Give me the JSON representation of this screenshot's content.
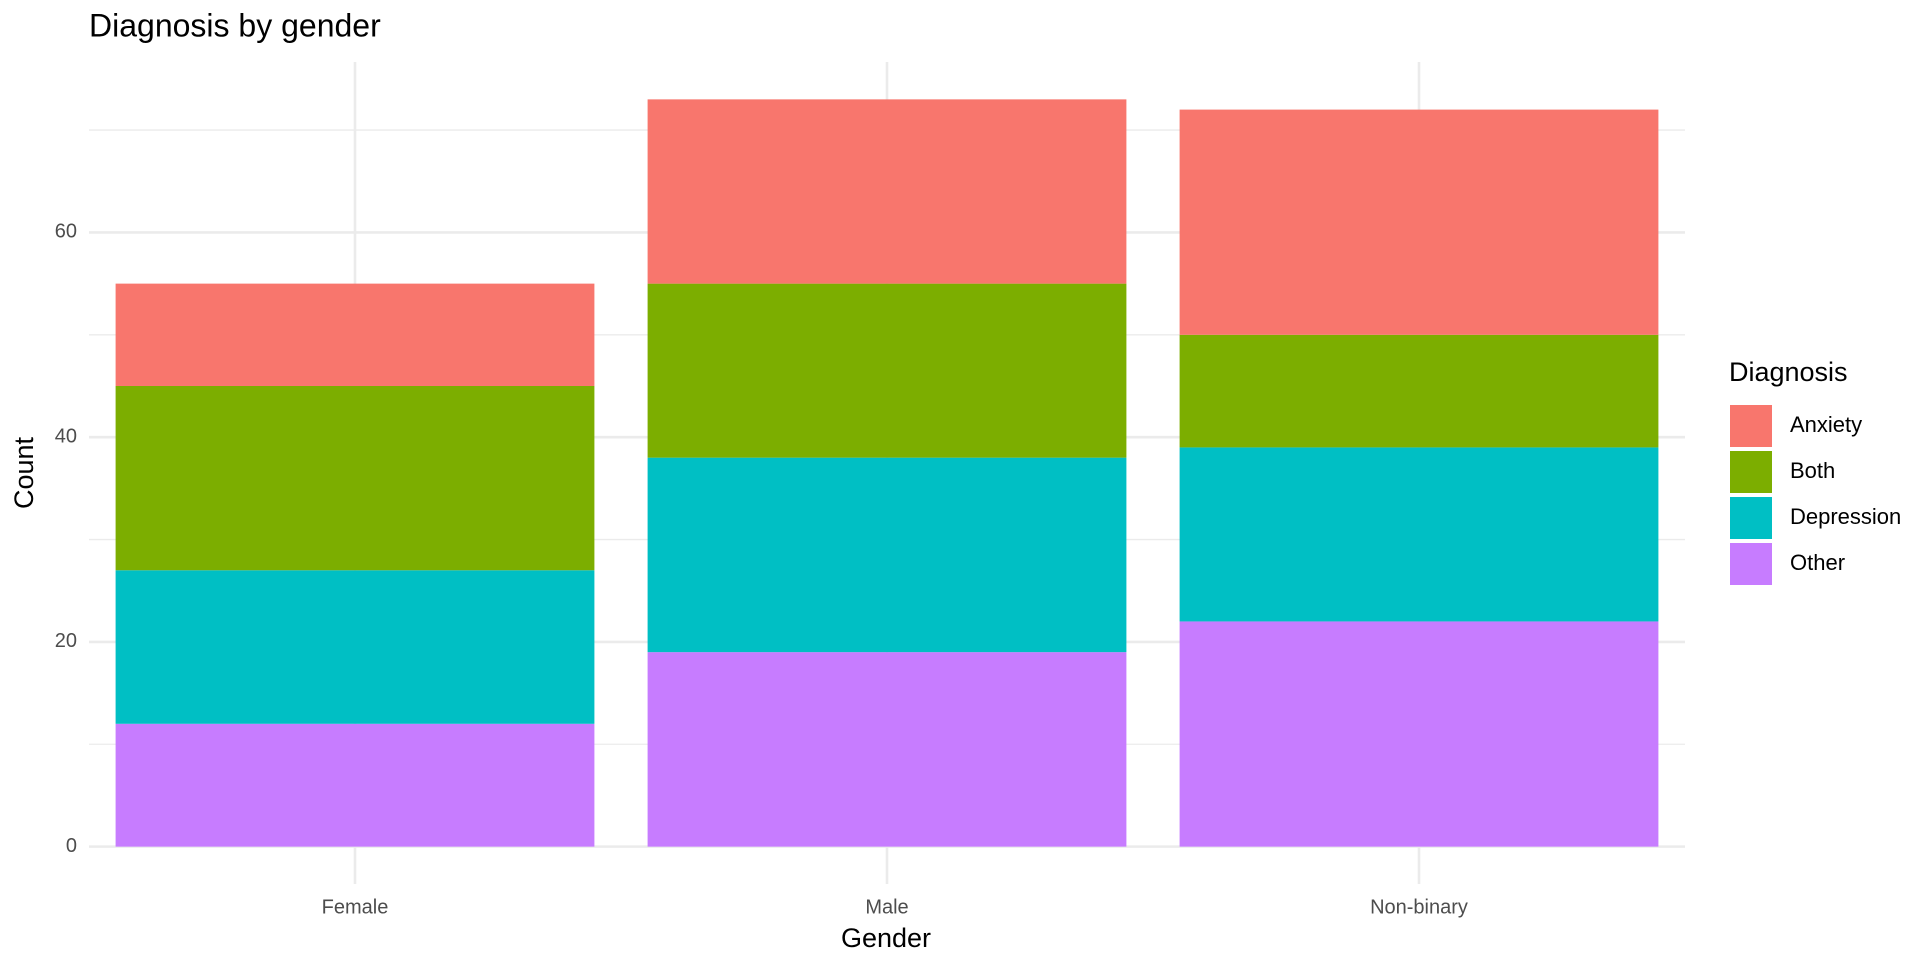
{
  "chart_data": {
    "type": "stacked_bar",
    "title": "Diagnosis by gender",
    "x_label": "Gender",
    "y_label": "Count",
    "legend_title": "Diagnosis",
    "categories": [
      "Female",
      "Male",
      "Non-binary"
    ],
    "series": [
      {
        "name": "Anxiety",
        "color": "#f8766d",
        "values": [
          10,
          18,
          22
        ]
      },
      {
        "name": "Both",
        "color": "#7cae00",
        "values": [
          18,
          17,
          11
        ]
      },
      {
        "name": "Depression",
        "color": "#00bfc4",
        "values": [
          15,
          19,
          17
        ]
      },
      {
        "name": "Other",
        "color": "#c77cff",
        "values": [
          12,
          19,
          22
        ]
      }
    ],
    "ylim": [
      -3.65,
      76.65
    ],
    "yticks": [
      0,
      20,
      40,
      60
    ],
    "minor_yticks": [
      10,
      30,
      50,
      70
    ],
    "grid": true,
    "legend": "right"
  }
}
